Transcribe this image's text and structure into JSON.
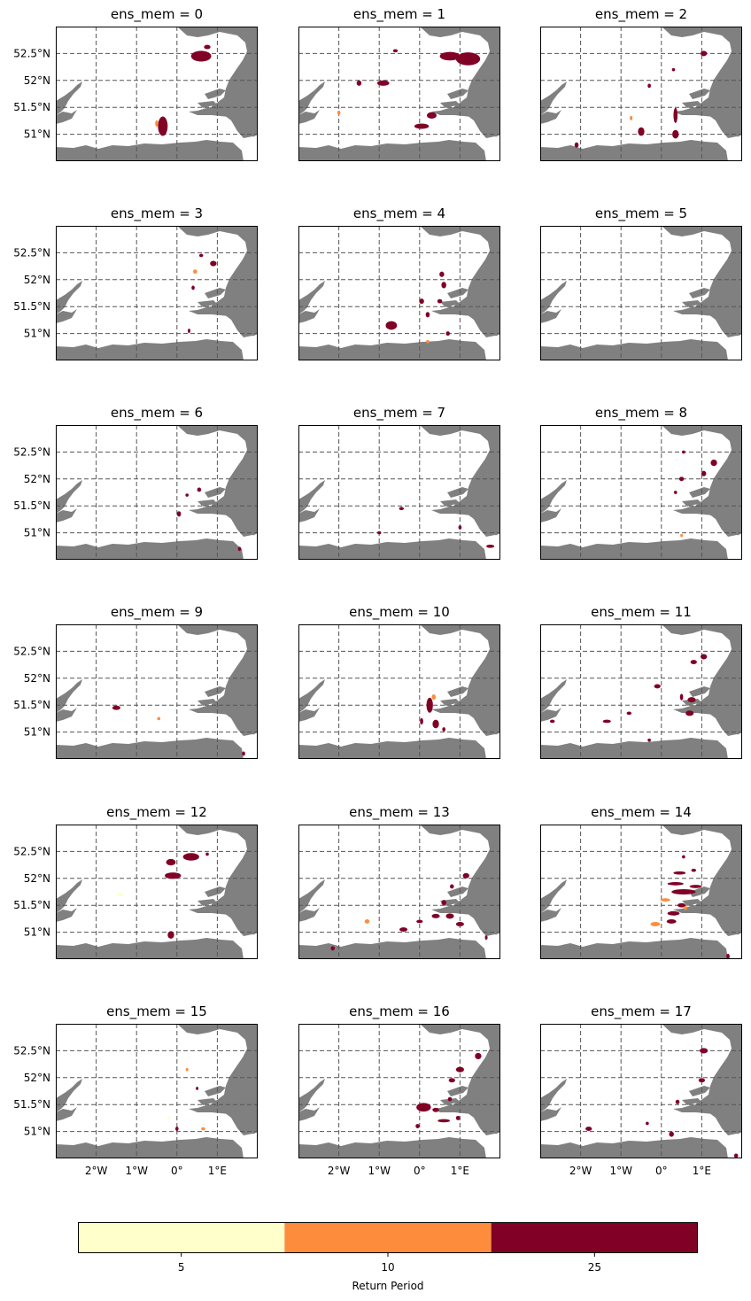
{
  "figure": {
    "grid_lon_labels": [
      "2°W",
      "1°W",
      "0°",
      "1°E"
    ],
    "grid_lat_labels": [
      "52.5°N",
      "52°N",
      "51.5°N",
      "51°N"
    ],
    "lon_values": [
      -2,
      -1,
      0,
      1
    ],
    "lat_values": [
      52.5,
      52.0,
      51.5,
      51.0
    ],
    "extent": {
      "lon_min": -3.0,
      "lon_max": 2.0,
      "lat_min": 50.5,
      "lat_max": 53.0
    },
    "gridline_style": "dashed",
    "land_color": "#ffffff",
    "sea_color": "#808080"
  },
  "panels": [
    {
      "title": "ens_mem = 0",
      "blobs": [
        [
          0.6,
          52.45,
          0.25,
          0.1,
          25
        ],
        [
          0.75,
          52.62,
          0.08,
          0.04,
          25
        ],
        [
          -0.35,
          51.15,
          0.12,
          0.18,
          25
        ],
        [
          -0.5,
          51.2,
          0.04,
          0.06,
          10
        ]
      ]
    },
    {
      "title": "ens_mem = 1",
      "blobs": [
        [
          1.2,
          52.4,
          0.3,
          0.12,
          25
        ],
        [
          0.75,
          52.45,
          0.25,
          0.08,
          25
        ],
        [
          -0.6,
          52.55,
          0.06,
          0.03,
          25
        ],
        [
          -0.9,
          51.95,
          0.15,
          0.05,
          25
        ],
        [
          -1.5,
          51.95,
          0.06,
          0.05,
          25
        ],
        [
          0.3,
          51.35,
          0.12,
          0.06,
          25
        ],
        [
          0.05,
          51.15,
          0.18,
          0.05,
          25
        ],
        [
          -2.0,
          51.4,
          0.04,
          0.04,
          10
        ]
      ]
    },
    {
      "title": "ens_mem = 2",
      "blobs": [
        [
          1.05,
          52.5,
          0.08,
          0.05,
          25
        ],
        [
          0.3,
          52.2,
          0.04,
          0.03,
          25
        ],
        [
          -0.3,
          51.9,
          0.04,
          0.04,
          25
        ],
        [
          0.35,
          51.35,
          0.05,
          0.14,
          25
        ],
        [
          -0.5,
          51.05,
          0.08,
          0.08,
          25
        ],
        [
          0.35,
          51.0,
          0.08,
          0.08,
          25
        ],
        [
          -2.1,
          50.8,
          0.05,
          0.05,
          25
        ],
        [
          -0.75,
          51.3,
          0.03,
          0.04,
          10
        ]
      ]
    },
    {
      "title": "ens_mem = 3",
      "blobs": [
        [
          0.6,
          52.45,
          0.05,
          0.03,
          25
        ],
        [
          0.9,
          52.3,
          0.08,
          0.05,
          25
        ],
        [
          0.45,
          52.15,
          0.05,
          0.04,
          10
        ],
        [
          0.4,
          51.85,
          0.04,
          0.04,
          25
        ],
        [
          0.3,
          51.05,
          0.03,
          0.04,
          25
        ]
      ]
    },
    {
      "title": "ens_mem = 4",
      "blobs": [
        [
          -0.7,
          51.15,
          0.14,
          0.08,
          25
        ],
        [
          0.05,
          51.6,
          0.06,
          0.05,
          25
        ],
        [
          0.2,
          51.35,
          0.05,
          0.05,
          25
        ],
        [
          0.6,
          51.9,
          0.06,
          0.06,
          25
        ],
        [
          0.55,
          52.1,
          0.06,
          0.05,
          25
        ],
        [
          0.5,
          51.6,
          0.06,
          0.04,
          25
        ],
        [
          0.7,
          51.0,
          0.05,
          0.04,
          25
        ],
        [
          0.2,
          50.85,
          0.04,
          0.03,
          10
        ]
      ]
    },
    {
      "title": "ens_mem = 5",
      "blobs": []
    },
    {
      "title": "ens_mem = 6",
      "blobs": [
        [
          0.55,
          51.8,
          0.05,
          0.04,
          25
        ],
        [
          0.25,
          51.7,
          0.04,
          0.03,
          25
        ],
        [
          0.05,
          51.35,
          0.05,
          0.05,
          25
        ],
        [
          1.55,
          50.7,
          0.04,
          0.04,
          25
        ]
      ]
    },
    {
      "title": "ens_mem = 7",
      "blobs": [
        [
          -0.45,
          51.45,
          0.06,
          0.03,
          25
        ],
        [
          -1.0,
          51.0,
          0.05,
          0.03,
          25
        ],
        [
          1.0,
          51.1,
          0.04,
          0.04,
          25
        ],
        [
          1.75,
          50.75,
          0.1,
          0.03,
          25
        ]
      ]
    },
    {
      "title": "ens_mem = 8",
      "blobs": [
        [
          1.3,
          52.3,
          0.08,
          0.06,
          25
        ],
        [
          1.05,
          52.1,
          0.06,
          0.05,
          25
        ],
        [
          0.5,
          52.0,
          0.06,
          0.04,
          25
        ],
        [
          0.55,
          52.5,
          0.04,
          0.03,
          25
        ],
        [
          0.35,
          51.75,
          0.04,
          0.03,
          25
        ],
        [
          0.5,
          50.95,
          0.03,
          0.03,
          10
        ]
      ]
    },
    {
      "title": "ens_mem = 9",
      "blobs": [
        [
          -1.5,
          51.45,
          0.1,
          0.04,
          25
        ],
        [
          -0.45,
          51.25,
          0.04,
          0.03,
          10
        ],
        [
          1.65,
          50.6,
          0.04,
          0.04,
          25
        ]
      ]
    },
    {
      "title": "ens_mem = 10",
      "blobs": [
        [
          0.25,
          51.5,
          0.08,
          0.14,
          25
        ],
        [
          0.4,
          51.15,
          0.08,
          0.08,
          25
        ],
        [
          0.05,
          51.2,
          0.04,
          0.06,
          25
        ],
        [
          0.35,
          51.65,
          0.05,
          0.05,
          10
        ],
        [
          0.6,
          51.05,
          0.04,
          0.04,
          25
        ]
      ]
    },
    {
      "title": "ens_mem = 11",
      "blobs": [
        [
          1.05,
          52.4,
          0.08,
          0.05,
          25
        ],
        [
          0.8,
          52.3,
          0.08,
          0.04,
          25
        ],
        [
          -0.1,
          51.85,
          0.08,
          0.04,
          25
        ],
        [
          0.5,
          51.65,
          0.04,
          0.06,
          25
        ],
        [
          0.7,
          51.35,
          0.1,
          0.05,
          25
        ],
        [
          0.75,
          51.6,
          0.1,
          0.05,
          25
        ],
        [
          -0.8,
          51.35,
          0.06,
          0.03,
          25
        ],
        [
          -1.35,
          51.2,
          0.1,
          0.03,
          25
        ],
        [
          -2.7,
          51.2,
          0.06,
          0.03,
          25
        ],
        [
          -0.3,
          50.85,
          0.04,
          0.03,
          25
        ]
      ]
    },
    {
      "title": "ens_mem = 12",
      "blobs": [
        [
          0.35,
          52.4,
          0.2,
          0.07,
          25
        ],
        [
          -0.15,
          52.3,
          0.12,
          0.06,
          25
        ],
        [
          -0.1,
          52.05,
          0.2,
          0.06,
          25
        ],
        [
          0.75,
          52.45,
          0.04,
          0.03,
          25
        ],
        [
          -0.15,
          50.95,
          0.08,
          0.07,
          25
        ],
        [
          -1.4,
          51.7,
          0.08,
          0.03,
          5
        ]
      ]
    },
    {
      "title": "ens_mem = 13",
      "blobs": [
        [
          1.15,
          52.05,
          0.08,
          0.05,
          25
        ],
        [
          0.8,
          51.85,
          0.05,
          0.04,
          25
        ],
        [
          0.6,
          51.55,
          0.06,
          0.05,
          25
        ],
        [
          0.4,
          51.3,
          0.1,
          0.04,
          25
        ],
        [
          0.75,
          51.3,
          0.1,
          0.05,
          25
        ],
        [
          1.0,
          51.15,
          0.1,
          0.04,
          25
        ],
        [
          0.0,
          51.2,
          0.08,
          0.03,
          25
        ],
        [
          -0.4,
          51.05,
          0.1,
          0.04,
          25
        ],
        [
          -1.3,
          51.2,
          0.06,
          0.04,
          10
        ],
        [
          -2.15,
          50.7,
          0.05,
          0.04,
          25
        ],
        [
          1.65,
          50.9,
          0.03,
          0.04,
          25
        ]
      ]
    },
    {
      "title": "ens_mem = 14",
      "blobs": [
        [
          0.55,
          51.75,
          0.3,
          0.05,
          25
        ],
        [
          0.85,
          51.85,
          0.15,
          0.03,
          25
        ],
        [
          0.35,
          51.9,
          0.2,
          0.03,
          25
        ],
        [
          0.45,
          52.1,
          0.15,
          0.03,
          25
        ],
        [
          0.8,
          52.15,
          0.06,
          0.03,
          25
        ],
        [
          0.5,
          51.5,
          0.1,
          0.04,
          25
        ],
        [
          0.3,
          51.35,
          0.15,
          0.04,
          25
        ],
        [
          0.25,
          51.2,
          0.12,
          0.04,
          25
        ],
        [
          -0.15,
          51.15,
          0.12,
          0.04,
          10
        ],
        [
          0.1,
          51.6,
          0.12,
          0.03,
          10
        ],
        [
          0.6,
          51.45,
          0.04,
          0.04,
          10
        ],
        [
          0.55,
          52.4,
          0.04,
          0.03,
          25
        ],
        [
          1.65,
          50.55,
          0.04,
          0.05,
          25
        ]
      ]
    },
    {
      "title": "ens_mem = 15",
      "blobs": [
        [
          0.25,
          52.15,
          0.03,
          0.03,
          10
        ],
        [
          0.5,
          51.8,
          0.03,
          0.03,
          25
        ],
        [
          0.0,
          51.05,
          0.04,
          0.04,
          25
        ],
        [
          0.65,
          51.05,
          0.05,
          0.03,
          10
        ],
        [
          -0.2,
          51.25,
          0.03,
          0.03,
          5
        ]
      ]
    },
    {
      "title": "ens_mem = 16",
      "blobs": [
        [
          1.45,
          52.4,
          0.08,
          0.06,
          25
        ],
        [
          1.0,
          52.15,
          0.1,
          0.05,
          25
        ],
        [
          0.8,
          51.95,
          0.08,
          0.04,
          25
        ],
        [
          0.1,
          51.45,
          0.18,
          0.08,
          25
        ],
        [
          0.4,
          51.4,
          0.08,
          0.04,
          25
        ],
        [
          0.6,
          51.2,
          0.15,
          0.03,
          25
        ],
        [
          -0.05,
          51.1,
          0.05,
          0.04,
          25
        ],
        [
          0.95,
          51.25,
          0.05,
          0.04,
          25
        ],
        [
          0.75,
          51.6,
          0.05,
          0.04,
          25
        ]
      ]
    },
    {
      "title": "ens_mem = 17",
      "blobs": [
        [
          1.05,
          52.5,
          0.1,
          0.05,
          25
        ],
        [
          1.0,
          51.95,
          0.08,
          0.04,
          25
        ],
        [
          0.4,
          51.55,
          0.05,
          0.04,
          25
        ],
        [
          -1.8,
          51.05,
          0.08,
          0.04,
          25
        ],
        [
          -0.35,
          51.15,
          0.04,
          0.03,
          25
        ],
        [
          0.25,
          50.95,
          0.06,
          0.05,
          25
        ],
        [
          1.85,
          50.55,
          0.05,
          0.04,
          25
        ]
      ]
    }
  ],
  "colorbar": {
    "label": "Return Period",
    "ticks": [
      "5",
      "10",
      "25"
    ],
    "colors": [
      "#ffffcc",
      "#fd8d3c",
      "#800026"
    ],
    "values": [
      5,
      10,
      25
    ]
  }
}
